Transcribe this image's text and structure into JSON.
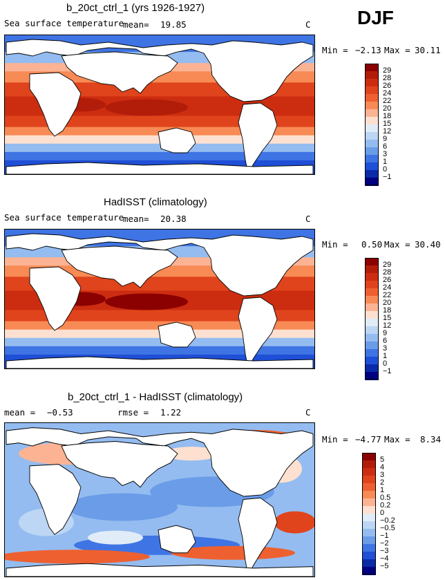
{
  "season": "DJF",
  "units": "C",
  "panels": [
    {
      "title": "b_20ct_ctrl_1 (yrs 1926-1927)",
      "field_label": "Sea surface temperature",
      "mean_label": "mean=",
      "mean_value": "19.85",
      "rmse_label": "",
      "rmse_value": "",
      "min_label": "Min =",
      "min_value": "−2.13",
      "max_label": "Max =",
      "max_value": "30.11",
      "kind": "model"
    },
    {
      "title": "HadISST (climatology)",
      "field_label": "Sea surface temperature",
      "mean_label": "mean=",
      "mean_value": "20.38",
      "rmse_label": "",
      "rmse_value": "",
      "min_label": "Min =",
      "min_value": "0.50",
      "max_label": "Max =",
      "max_value": "30.40",
      "kind": "obs"
    },
    {
      "title": "b_20ct_ctrl_1 - HadISST (climatology)",
      "field_label": "",
      "mean_label": "mean =",
      "mean_value": "−0.53",
      "rmse_label": "rmse =",
      "rmse_value": "1.22",
      "min_label": "Min =",
      "min_value": "−4.77",
      "max_label": "Max =",
      "max_value": "8.34",
      "kind": "diff"
    }
  ],
  "chart_data": [
    {
      "type": "heatmap",
      "title": "b_20ct_ctrl_1 (yrs 1926-1927)",
      "variable": "Sea surface temperature",
      "units": "C",
      "season": "DJF",
      "stats": {
        "mean": 19.85,
        "min": -2.13,
        "max": 30.11
      },
      "colorbar_levels": [
        29,
        28,
        26,
        24,
        22,
        20,
        18,
        15,
        12,
        9,
        6,
        3,
        1,
        0,
        -1
      ]
    },
    {
      "type": "heatmap",
      "title": "HadISST (climatology)",
      "variable": "Sea surface temperature",
      "units": "C",
      "season": "DJF",
      "stats": {
        "mean": 20.38,
        "min": 0.5,
        "max": 30.4
      },
      "colorbar_levels": [
        29,
        28,
        26,
        24,
        22,
        20,
        18,
        15,
        12,
        9,
        6,
        3,
        1,
        0,
        -1
      ]
    },
    {
      "type": "heatmap",
      "title": "b_20ct_ctrl_1 - HadISST (climatology)",
      "units": "C",
      "season": "DJF",
      "stats": {
        "mean": -0.53,
        "rmse": 1.22,
        "min": -4.77,
        "max": 8.34
      },
      "colorbar_levels": [
        5,
        4,
        3,
        2,
        1,
        0.5,
        0.2,
        0,
        -0.2,
        -0.5,
        -1,
        -2,
        -3,
        -4,
        -5
      ]
    }
  ],
  "colorbars": [
    {
      "labels": [
        "29",
        "28",
        "26",
        "24",
        "22",
        "20",
        "18",
        "15",
        "12",
        "9",
        "6",
        "3",
        "1",
        "0",
        "−1"
      ],
      "colors": [
        "#8b0000",
        "#b21d0a",
        "#cc2d10",
        "#e0441c",
        "#ee6030",
        "#f88a55",
        "#fbb394",
        "#fde0d0",
        "#e0ecf8",
        "#bcd6f4",
        "#94bcf0",
        "#6a9ce8",
        "#3f74e4",
        "#1f4fd6",
        "#0a2aa8",
        "#000080"
      ]
    },
    {
      "labels": [
        "29",
        "28",
        "26",
        "24",
        "22",
        "20",
        "18",
        "15",
        "12",
        "9",
        "6",
        "3",
        "1",
        "0",
        "−1"
      ],
      "colors": [
        "#8b0000",
        "#b21d0a",
        "#cc2d10",
        "#e0441c",
        "#ee6030",
        "#f88a55",
        "#fbb394",
        "#fde0d0",
        "#e0ecf8",
        "#bcd6f4",
        "#94bcf0",
        "#6a9ce8",
        "#3f74e4",
        "#1f4fd6",
        "#0a2aa8",
        "#000080"
      ]
    },
    {
      "labels": [
        "5",
        "4",
        "3",
        "2",
        "1",
        "0.5",
        "0.2",
        "0",
        "−0.2",
        "−0.5",
        "−1",
        "−2",
        "−3",
        "−4",
        "−5"
      ],
      "colors": [
        "#8b0000",
        "#b21d0a",
        "#cc2d10",
        "#e0441c",
        "#ee6030",
        "#f88a55",
        "#fbb394",
        "#fde0d0",
        "#e0ecf8",
        "#bcd6f4",
        "#94bcf0",
        "#6a9ce8",
        "#3f74e4",
        "#1f4fd6",
        "#0a2aa8",
        "#000080"
      ]
    }
  ]
}
